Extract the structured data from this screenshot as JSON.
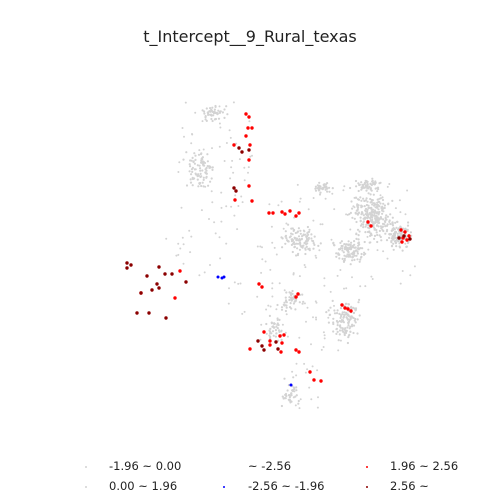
{
  "title": "t_Intercept__9_Rural_texas",
  "colors": {
    "background": "#ffffff",
    "gray_points": "#d3d3d3",
    "red_points": "#ff0000",
    "darkred_points": "#8b0000",
    "blue_points": "#0000ff"
  },
  "legend": {
    "items": [
      {
        "label": "-1.96 ~ 0.00",
        "color": "#d3d3d3"
      },
      {
        "label": "~ -2.56",
        "color": "#ffffff"
      },
      {
        "label": "1.96 ~ 2.56",
        "color": "#ff0000"
      },
      {
        "label": "0.00 ~ 1.96",
        "color": "#d3d3d3"
      },
      {
        "label": "-2.56 ~ -1.96",
        "color": "#0000ff"
      },
      {
        "label": "2.56 ~",
        "color": "#8b0000"
      }
    ]
  }
}
